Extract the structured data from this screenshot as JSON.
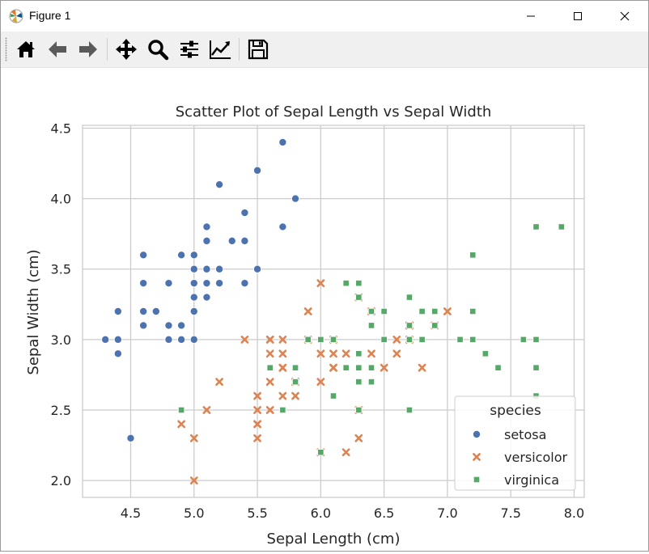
{
  "window": {
    "title": "Figure 1"
  },
  "toolbar": {
    "buttons": [
      {
        "icon": "home-icon"
      },
      {
        "icon": "back-arrow-icon"
      },
      {
        "icon": "forward-arrow-icon"
      },
      {
        "icon": "pan-move-icon"
      },
      {
        "icon": "zoom-magnifier-icon"
      },
      {
        "icon": "configure-subplots-icon"
      },
      {
        "icon": "edit-axis-line-icon"
      },
      {
        "icon": "save-floppy-icon"
      }
    ]
  },
  "chart_data": {
    "type": "scatter",
    "title": "Scatter Plot of Sepal Length vs Sepal Width",
    "xlabel": "Sepal Length (cm)",
    "ylabel": "Sepal Width (cm)",
    "xlim": [
      4.12,
      8.08
    ],
    "ylim": [
      1.88,
      4.52
    ],
    "xticks": [
      4.5,
      5.0,
      5.5,
      6.0,
      6.5,
      7.0,
      7.5,
      8.0
    ],
    "xtick_labels": [
      "4.5",
      "5.0",
      "5.5",
      "6.0",
      "6.5",
      "7.0",
      "7.5",
      "8.0"
    ],
    "yticks": [
      2.0,
      2.5,
      3.0,
      3.5,
      4.0,
      4.5
    ],
    "ytick_labels": [
      "2.0",
      "2.5",
      "3.0",
      "3.5",
      "4.0",
      "4.5"
    ],
    "grid": true,
    "legend": {
      "title": "species",
      "position": "lower-right"
    },
    "series": [
      {
        "name": "setosa",
        "marker": "circle",
        "color": "#4c72b0",
        "points": [
          [
            5.1,
            3.5
          ],
          [
            4.9,
            3.0
          ],
          [
            4.7,
            3.2
          ],
          [
            4.6,
            3.1
          ],
          [
            5.0,
            3.6
          ],
          [
            5.4,
            3.9
          ],
          [
            4.6,
            3.4
          ],
          [
            5.0,
            3.4
          ],
          [
            4.4,
            2.9
          ],
          [
            4.9,
            3.1
          ],
          [
            5.4,
            3.7
          ],
          [
            4.8,
            3.4
          ],
          [
            4.8,
            3.0
          ],
          [
            4.3,
            3.0
          ],
          [
            5.8,
            4.0
          ],
          [
            5.7,
            4.4
          ],
          [
            5.4,
            3.9
          ],
          [
            5.1,
            3.5
          ],
          [
            5.7,
            3.8
          ],
          [
            5.1,
            3.8
          ],
          [
            5.4,
            3.4
          ],
          [
            5.1,
            3.7
          ],
          [
            4.6,
            3.6
          ],
          [
            5.1,
            3.3
          ],
          [
            4.8,
            3.4
          ],
          [
            5.0,
            3.0
          ],
          [
            5.0,
            3.4
          ],
          [
            5.2,
            3.5
          ],
          [
            5.2,
            3.4
          ],
          [
            4.7,
            3.2
          ],
          [
            4.8,
            3.1
          ],
          [
            5.4,
            3.4
          ],
          [
            5.2,
            4.1
          ],
          [
            5.5,
            4.2
          ],
          [
            4.9,
            3.1
          ],
          [
            5.0,
            3.2
          ],
          [
            5.5,
            3.5
          ],
          [
            4.9,
            3.6
          ],
          [
            4.4,
            3.0
          ],
          [
            5.1,
            3.4
          ],
          [
            5.0,
            3.5
          ],
          [
            4.5,
            2.3
          ],
          [
            4.4,
            3.2
          ],
          [
            5.0,
            3.5
          ],
          [
            5.1,
            3.8
          ],
          [
            4.8,
            3.0
          ],
          [
            5.1,
            3.8
          ],
          [
            4.6,
            3.2
          ],
          [
            5.3,
            3.7
          ],
          [
            5.0,
            3.3
          ]
        ]
      },
      {
        "name": "versicolor",
        "marker": "x",
        "color": "#dd8452",
        "points": [
          [
            7.0,
            3.2
          ],
          [
            6.4,
            3.2
          ],
          [
            6.9,
            3.1
          ],
          [
            5.5,
            2.3
          ],
          [
            6.5,
            2.8
          ],
          [
            5.7,
            2.8
          ],
          [
            6.3,
            3.3
          ],
          [
            4.9,
            2.4
          ],
          [
            6.6,
            2.9
          ],
          [
            5.2,
            2.7
          ],
          [
            5.0,
            2.0
          ],
          [
            5.9,
            3.0
          ],
          [
            6.0,
            2.2
          ],
          [
            6.1,
            2.9
          ],
          [
            5.6,
            2.9
          ],
          [
            6.7,
            3.1
          ],
          [
            5.6,
            3.0
          ],
          [
            5.8,
            2.7
          ],
          [
            6.2,
            2.2
          ],
          [
            5.6,
            2.5
          ],
          [
            5.9,
            3.2
          ],
          [
            6.1,
            2.8
          ],
          [
            6.3,
            2.5
          ],
          [
            6.1,
            2.8
          ],
          [
            6.4,
            2.9
          ],
          [
            6.6,
            3.0
          ],
          [
            6.8,
            2.8
          ],
          [
            6.7,
            3.0
          ],
          [
            6.0,
            2.9
          ],
          [
            5.7,
            2.6
          ],
          [
            5.5,
            2.4
          ],
          [
            5.5,
            2.4
          ],
          [
            5.8,
            2.7
          ],
          [
            6.0,
            2.7
          ],
          [
            5.4,
            3.0
          ],
          [
            6.0,
            3.4
          ],
          [
            6.7,
            3.1
          ],
          [
            6.3,
            2.3
          ],
          [
            5.6,
            3.0
          ],
          [
            5.5,
            2.5
          ],
          [
            5.5,
            2.6
          ],
          [
            6.1,
            3.0
          ],
          [
            5.8,
            2.6
          ],
          [
            5.0,
            2.3
          ],
          [
            5.6,
            2.7
          ],
          [
            5.7,
            3.0
          ],
          [
            5.7,
            2.9
          ],
          [
            6.2,
            2.9
          ],
          [
            5.1,
            2.5
          ],
          [
            5.7,
            2.8
          ]
        ]
      },
      {
        "name": "virginica",
        "marker": "square",
        "color": "#55a868",
        "points": [
          [
            6.3,
            3.3
          ],
          [
            5.8,
            2.7
          ],
          [
            7.1,
            3.0
          ],
          [
            6.3,
            2.9
          ],
          [
            6.5,
            3.0
          ],
          [
            7.6,
            3.0
          ],
          [
            4.9,
            2.5
          ],
          [
            7.3,
            2.9
          ],
          [
            6.7,
            2.5
          ],
          [
            7.2,
            3.6
          ],
          [
            6.5,
            3.2
          ],
          [
            6.4,
            2.7
          ],
          [
            6.8,
            3.0
          ],
          [
            5.7,
            2.5
          ],
          [
            5.8,
            2.8
          ],
          [
            6.4,
            3.2
          ],
          [
            6.5,
            3.0
          ],
          [
            7.7,
            3.8
          ],
          [
            7.7,
            2.6
          ],
          [
            6.0,
            2.2
          ],
          [
            6.9,
            3.2
          ],
          [
            5.6,
            2.8
          ],
          [
            7.7,
            2.8
          ],
          [
            6.3,
            2.7
          ],
          [
            6.7,
            3.3
          ],
          [
            7.2,
            3.2
          ],
          [
            6.2,
            2.8
          ],
          [
            6.1,
            3.0
          ],
          [
            6.4,
            2.8
          ],
          [
            7.2,
            3.0
          ],
          [
            7.4,
            2.8
          ],
          [
            7.9,
            3.8
          ],
          [
            6.4,
            2.8
          ],
          [
            6.3,
            2.8
          ],
          [
            6.1,
            2.6
          ],
          [
            7.7,
            3.0
          ],
          [
            6.3,
            3.4
          ],
          [
            6.4,
            3.1
          ],
          [
            6.0,
            3.0
          ],
          [
            6.9,
            3.1
          ],
          [
            6.7,
            3.1
          ],
          [
            6.9,
            3.1
          ],
          [
            5.8,
            2.7
          ],
          [
            6.8,
            3.2
          ],
          [
            6.7,
            3.3
          ],
          [
            6.7,
            3.0
          ],
          [
            6.3,
            2.5
          ],
          [
            6.5,
            3.0
          ],
          [
            6.2,
            3.4
          ],
          [
            5.9,
            3.0
          ]
        ]
      }
    ]
  }
}
